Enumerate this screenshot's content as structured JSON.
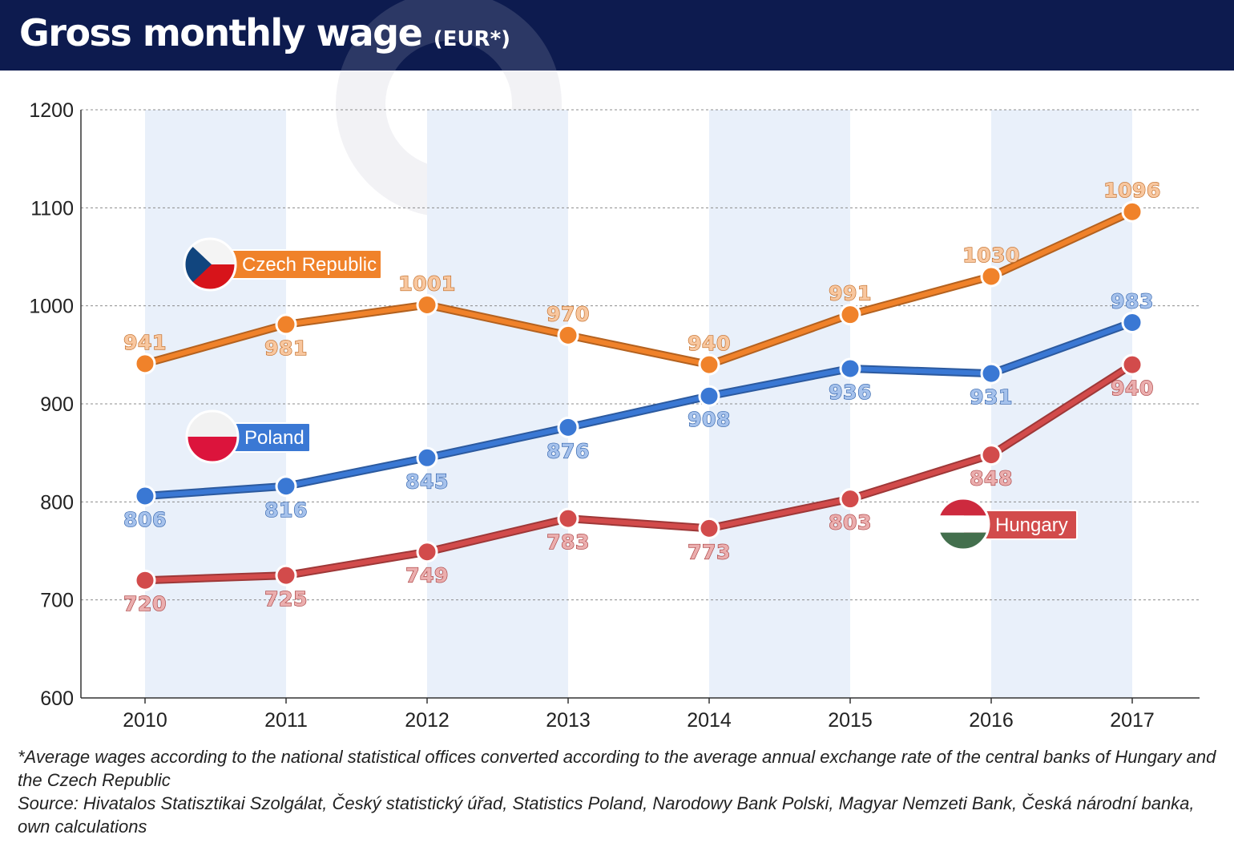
{
  "header": {
    "title": "Gross monthly wage",
    "unit": "(EUR*)"
  },
  "footnote": {
    "note": "*Average wages according to the national statistical offices converted according to the average annual exchange rate of the central banks of Hungary and the Czech Republic",
    "source": "Source: Hivatalos Statisztikai Szolgálat, Český statistický úřad, Statistics Poland, Narodowy Bank Polski, Magyar Nemzeti Bank, Česká národní banka, own calculations"
  },
  "colors": {
    "header_bg": "#0d1b4f",
    "band": "#e9f0fa",
    "grid": "#8c8c8c",
    "axis": "#333333"
  },
  "chart_data": {
    "type": "line",
    "title": "Gross monthly wage (EUR*)",
    "x": [
      "2010",
      "2011",
      "2012",
      "2013",
      "2014",
      "2015",
      "2016",
      "2017"
    ],
    "ylim": [
      600,
      1200
    ],
    "yticks": [
      600,
      700,
      800,
      900,
      1000,
      1100,
      1200
    ],
    "grid": true,
    "bands": "alternating column shading",
    "series": [
      {
        "name": "Czech Republic",
        "color": "#f0822a",
        "values": [
          941,
          981,
          1001,
          970,
          940,
          991,
          1030,
          1096
        ],
        "label_pos": [
          "above",
          "below",
          "above",
          "above",
          "above",
          "above",
          "above",
          "above"
        ],
        "legend_pos": "upper-left",
        "flag": "czech-flag"
      },
      {
        "name": "Poland",
        "color": "#3a78d4",
        "values": [
          806,
          816,
          845,
          876,
          908,
          936,
          931,
          983
        ],
        "label_pos": [
          "below",
          "below",
          "below",
          "below",
          "below",
          "below",
          "below",
          "above"
        ],
        "legend_pos": "middle-left",
        "flag": "polish-flag"
      },
      {
        "name": "Hungary",
        "color": "#d24b4b",
        "values": [
          720,
          725,
          749,
          783,
          773,
          803,
          848,
          940
        ],
        "label_pos": [
          "below",
          "below",
          "below",
          "below",
          "below",
          "below",
          "below",
          "below"
        ],
        "legend_pos": "lower-right",
        "flag": "hungarian-flag"
      }
    ]
  }
}
